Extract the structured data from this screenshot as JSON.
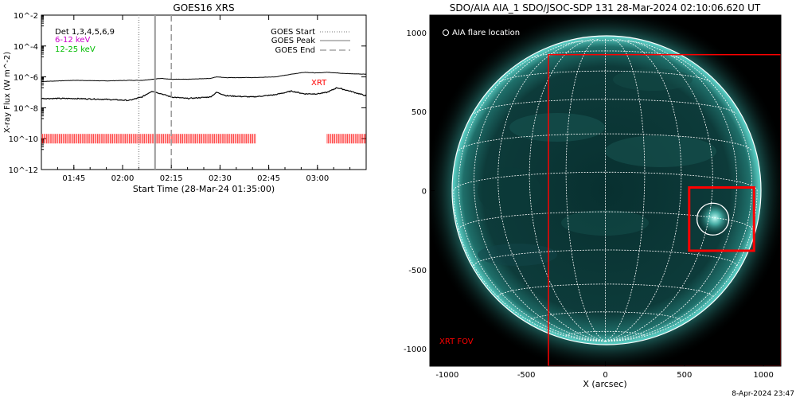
{
  "goes_panel": {
    "title": "GOES16 XRS",
    "ylabel": "X-ray Flux (W m^-2)",
    "xlabel": "Start Time (28-Mar-24 01:35:00)",
    "yticks": [
      "10^-2",
      "10^-4",
      "10^-6",
      "10^-8",
      "10^-10",
      "10^-12"
    ],
    "xticks": [
      "01:45",
      "02:00",
      "02:15",
      "02:30",
      "02:45",
      "03:00"
    ],
    "channel_legend": [
      {
        "label": "Det 1,3,4,5,6,9",
        "color": "#000000"
      },
      {
        "label": "6-12 keV",
        "color": "#cc00cc"
      },
      {
        "label": "12-25 keV",
        "color": "#00cc00"
      }
    ],
    "line_legend": [
      {
        "label": "GOES Start",
        "style": "dotted"
      },
      {
        "label": "GOES Peak",
        "style": "solid"
      },
      {
        "label": "GOES End",
        "style": "dashed"
      }
    ],
    "xrt_label": "XRT",
    "colors": {
      "xrt": "#ff0000",
      "marker": "#999999"
    }
  },
  "aia_panel": {
    "title": "SDO/AIA AIA_1 SDO/JSOC-SDP 131 28-Mar-2024 02:10:06.620 UT",
    "legend": "AIA flare location",
    "xrt_fov_label": "XRT FOV",
    "xlabel": "X (arcsec)",
    "xticks": [
      "-1000",
      "-500",
      "0",
      "500",
      "1000"
    ],
    "yticks": [
      "1000",
      "500",
      "0",
      "-500",
      "-1000"
    ],
    "colors": {
      "disk": "#0b3433",
      "limb": "#5fd6cc",
      "fov": "#ff0000"
    }
  },
  "footer": {
    "timestamp": "8-Apr-2024 23:47"
  },
  "chart_data": [
    {
      "type": "line",
      "title": "GOES16 XRS",
      "xlabel": "Start Time (28-Mar-24 01:35:00)",
      "ylabel": "X-ray Flux (W m^-2)",
      "yscale": "log",
      "ylim": [
        1e-12,
        0.01
      ],
      "xlim": [
        "01:35",
        "03:15"
      ],
      "series": [
        {
          "name": "Det 1,3,4,5,6,9",
          "x": [
            "01:35",
            "01:45",
            "01:55",
            "02:02",
            "02:06",
            "02:09",
            "02:12",
            "02:15",
            "02:20",
            "02:27",
            "02:29",
            "02:32",
            "02:40",
            "02:47",
            "02:52",
            "02:56",
            "03:00",
            "03:03",
            "03:06",
            "03:10",
            "03:15"
          ],
          "y": [
            5e-07,
            6e-07,
            5.5e-07,
            6e-07,
            6e-07,
            7e-07,
            8e-07,
            7e-07,
            7e-07,
            8e-07,
            1e-06,
            9e-07,
            9e-07,
            1e-06,
            1.5e-06,
            2e-06,
            1.8e-06,
            2e-06,
            1.8e-06,
            1.6e-06,
            1.5e-06
          ]
        },
        {
          "name": "6-12 keV",
          "x": [
            "01:35",
            "01:45",
            "01:55",
            "02:02",
            "02:06",
            "02:09",
            "02:12",
            "02:15",
            "02:20",
            "02:27",
            "02:29",
            "02:32",
            "02:40",
            "02:47",
            "02:52",
            "02:56",
            "03:00",
            "03:03",
            "03:06",
            "03:10",
            "03:15"
          ],
          "y": [
            4e-08,
            4e-08,
            3.5e-08,
            3e-08,
            5e-08,
            1.2e-07,
            8e-08,
            5e-08,
            4e-08,
            5e-08,
            1e-07,
            6e-08,
            5e-08,
            7e-08,
            1.2e-07,
            8e-08,
            8e-08,
            1e-07,
            2e-07,
            1.2e-07,
            6e-08
          ]
        }
      ],
      "markers": {
        "start": "02:05",
        "peak": "02:10",
        "end": "02:15"
      },
      "xrt_coverage": [
        [
          "01:35",
          "02:41"
        ],
        [
          "03:03",
          "03:15"
        ]
      ]
    },
    {
      "type": "scatter",
      "title": "SDO/AIA AIA_1 SDO/JSOC-SDP 131 28-Mar-2024 02:10:06.620 UT",
      "xlabel": "X (arcsec)",
      "ylabel": "",
      "xlim": [
        -1110,
        1110
      ],
      "ylim": [
        -1110,
        1110
      ],
      "solar_radius": 960,
      "grid": true,
      "flare_location": {
        "x": 680,
        "y": -180
      },
      "xrt_fov": [
        {
          "x0": -360,
          "x1": 1110,
          "y0": -1110,
          "y1": 860
        },
        {
          "x0": 530,
          "x1": 940,
          "y0": -380,
          "y1": 20
        }
      ]
    }
  ]
}
